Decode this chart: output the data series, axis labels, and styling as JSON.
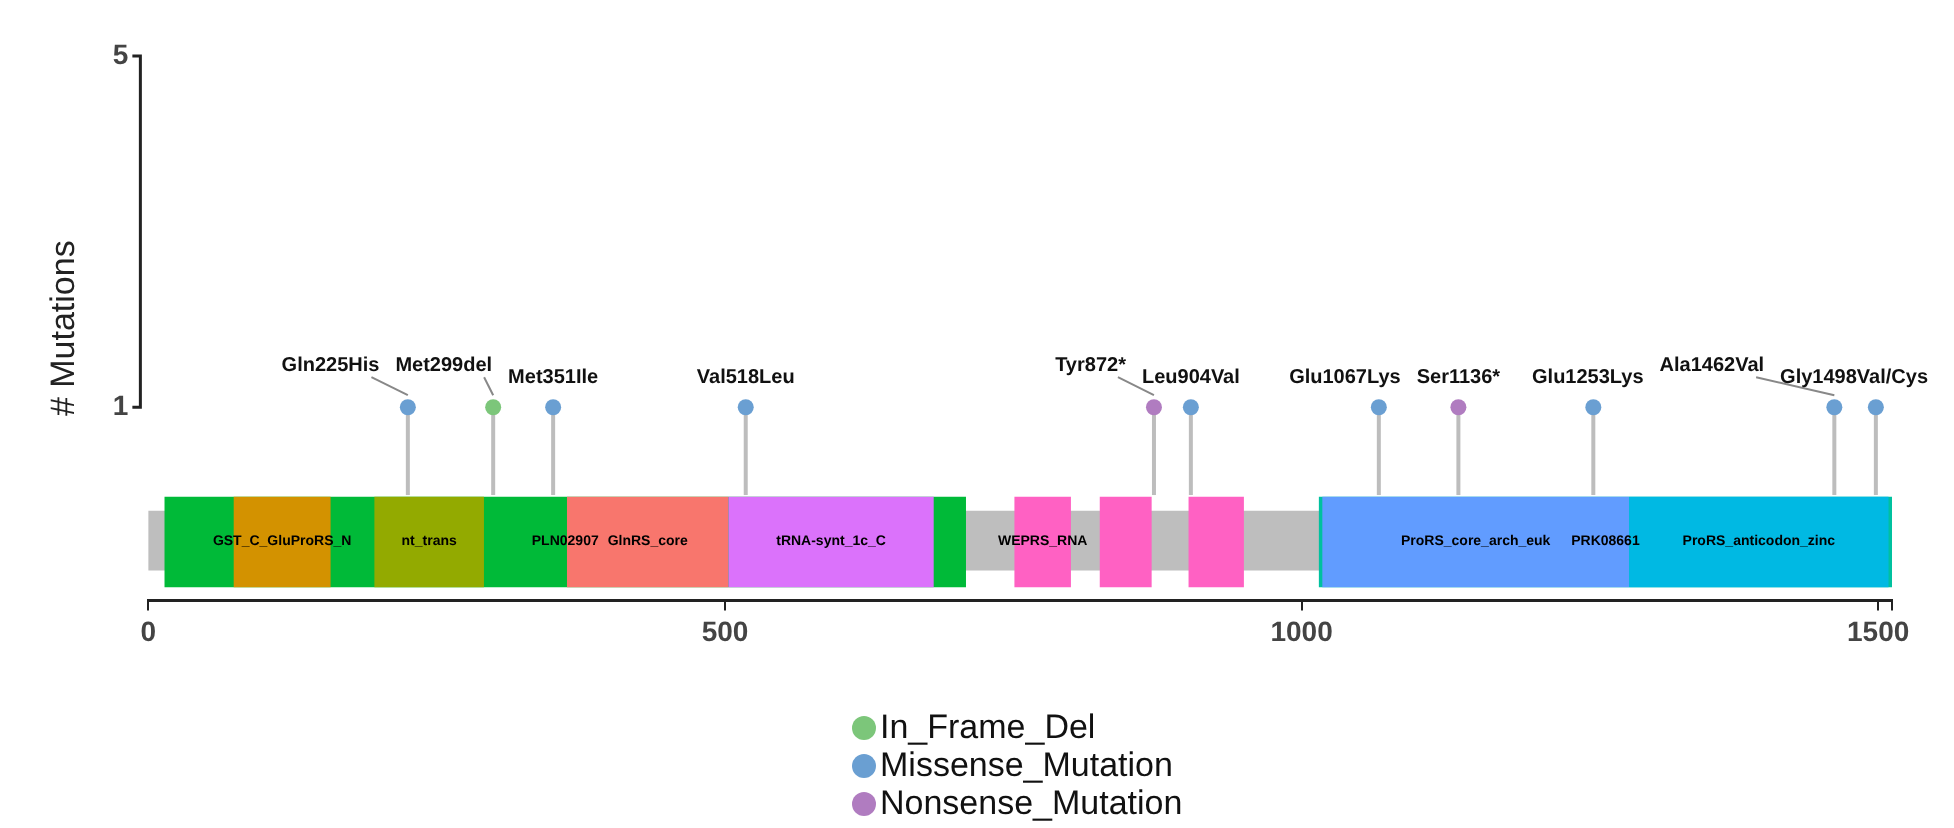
{
  "chart_data": {
    "type": "lollipop",
    "ylabel": "# Mutations",
    "xlim": [
      0,
      1512
    ],
    "xticks": [
      0,
      500,
      1000,
      1500,
      {
        "value": 1512,
        "label": null
      }
    ],
    "ylim": [
      -1.2,
      5
    ],
    "yticks": [
      1,
      5
    ],
    "grid": false,
    "legend": "bottom",
    "marker": "circle",
    "series": [
      {
        "name": "In_Frame_Del",
        "color": "#7cc67a",
        "x": [
          299
        ],
        "values": [
          1
        ]
      },
      {
        "name": "Missense_Mutation",
        "color": "#6a9fd2",
        "x": [
          225,
          351,
          518,
          904,
          1067,
          1253,
          1462,
          1498
        ],
        "values": [
          1,
          1,
          1,
          1,
          1,
          1,
          1,
          1
        ]
      },
      {
        "name": "Nonsense_Mutation",
        "color": "#b07cc0",
        "x": [
          872,
          1136
        ],
        "values": [
          1,
          1
        ]
      }
    ],
    "bands": [
      {
        "axis": "x",
        "from": 0,
        "to": 1512,
        "label": null,
        "color": "#bebebe"
      },
      {
        "axis": "x",
        "from": 14,
        "to": 709,
        "label": "PLN02907",
        "color": "#00ba38"
      },
      {
        "axis": "x",
        "from": 74,
        "to": 158,
        "label": "GST_C_GluProRS_N",
        "color": "#d39200"
      },
      {
        "axis": "x",
        "from": 196,
        "to": 291,
        "label": "nt_trans",
        "color": "#93aa00"
      },
      {
        "axis": "x",
        "from": 363,
        "to": 503,
        "label": "GlnRS_core",
        "color": "#f8766d"
      },
      {
        "axis": "x",
        "from": 503,
        "to": 681,
        "label": "tRNA-synt_1c_C",
        "color": "#db72fb"
      },
      {
        "axis": "x",
        "from": 751,
        "to": 800,
        "label": "WEPRS_RNA",
        "color": "#ff61c3"
      },
      {
        "axis": "x",
        "from": 825,
        "to": 870,
        "label": null,
        "color": "#ff61c3"
      },
      {
        "axis": "x",
        "from": 902,
        "to": 950,
        "label": null,
        "color": "#ff61c3"
      },
      {
        "axis": "x",
        "from": 1015,
        "to": 1512,
        "label": "PRK08661",
        "color": "#00c19f"
      },
      {
        "axis": "x",
        "from": 1018,
        "to": 1284,
        "label": "ProRS_core_arch_euk",
        "color": "#619cff"
      },
      {
        "axis": "x",
        "from": 1284,
        "to": 1509,
        "label": "ProRS_anticodon_zinc",
        "color": "#00b9e3"
      }
    ],
    "annotations": [
      {
        "text": "Gln225His",
        "x": 225,
        "y": 1
      },
      {
        "text": "Met299del",
        "x": 299,
        "y": 1
      },
      {
        "text": "Met351Ile",
        "x": 351,
        "y": 1
      },
      {
        "text": "Val518Leu",
        "x": 518,
        "y": 1
      },
      {
        "text": "Tyr872*",
        "x": 872,
        "y": 1
      },
      {
        "text": "Leu904Val",
        "x": 904,
        "y": 1
      },
      {
        "text": "Glu1067Lys",
        "x": 1067,
        "y": 1
      },
      {
        "text": "Ser1136*",
        "x": 1136,
        "y": 1
      },
      {
        "text": "Glu1253Lys",
        "x": 1253,
        "y": 1
      },
      {
        "text": "Ala1462Val",
        "x": 1462,
        "y": 1
      },
      {
        "text": "Gly1498Val/Cys",
        "x": 1498,
        "y": 1
      }
    ]
  }
}
